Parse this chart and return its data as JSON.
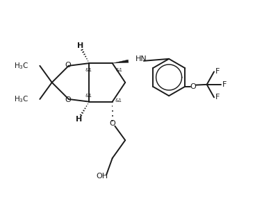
{
  "background_color": "#ffffff",
  "line_color": "#1a1a1a",
  "line_width": 1.4,
  "font_size": 7.5,
  "figsize": [
    3.9,
    2.97
  ],
  "dpi": 100,
  "xlim": [
    -1.0,
    9.5
  ],
  "ylim": [
    0.5,
    7.5
  ]
}
